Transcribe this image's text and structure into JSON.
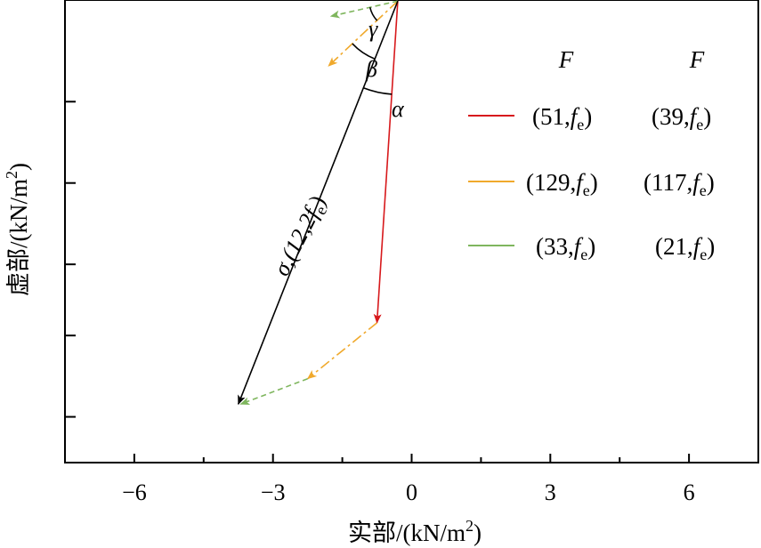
{
  "chart_data": {
    "type": "line",
    "title": "",
    "xlabel": {
      "main": "实部/(kN/m",
      "sup": "2",
      "close": ")"
    },
    "ylabel": {
      "main": "虚部/(kN/m",
      "sup": "2",
      "close": ")"
    },
    "xlim": [
      -7.5,
      7.5
    ],
    "ylim": [
      -8.6,
      0.5
    ],
    "x_ticks": [
      -6,
      -3,
      0,
      3,
      6
    ],
    "x_tick_labels": [
      "−6",
      "−3",
      "0",
      "3",
      "6"
    ],
    "y_ticks": [
      -1.5,
      -3.1,
      -4.7,
      -6.1,
      -7.7
    ],
    "grid": false,
    "legend_position": "right",
    "legend_header": [
      "F",
      "F"
    ],
    "series": [
      {
        "color": "#d7191c",
        "dash": "solid",
        "from": [
          -0.3,
          0.48
        ],
        "to": [
          -0.75,
          -5.85
        ],
        "legend": [
          "(51,",
          "f",
          "e",
          ")",
          "(39,",
          "f",
          "e",
          ")"
        ]
      },
      {
        "color": "#f0a92c",
        "dash": "dashdot",
        "from": [
          -0.75,
          -5.85
        ],
        "to": [
          -2.25,
          -6.95
        ],
        "legend": [
          "(129,",
          "f",
          "e",
          ")",
          "(117,",
          "f",
          "e",
          ")"
        ]
      },
      {
        "color": "#7fb65e",
        "dash": "dashed",
        "from": [
          -2.25,
          -6.95
        ],
        "to": [
          -3.7,
          -7.45
        ],
        "legend": [
          "(33,",
          "f",
          "e",
          ")",
          "(21,",
          "f",
          "e",
          ")"
        ]
      },
      {
        "color": "#000000",
        "dash": "solid",
        "from": [
          -0.3,
          0.48
        ],
        "to": [
          -3.75,
          -7.45
        ],
        "label": [
          "σ,(12,2",
          "f",
          "e",
          ")"
        ]
      }
    ],
    "small_vectors": [
      {
        "color": "#f0a92c",
        "dash": "dashdot",
        "from": [
          -0.3,
          0.48
        ],
        "to": [
          -1.8,
          -0.8
        ]
      },
      {
        "color": "#7fb65e",
        "dash": "dashed",
        "from": [
          -0.3,
          0.48
        ],
        "to": [
          -1.75,
          0.18
        ]
      }
    ],
    "angle_labels": [
      "α",
      "β",
      "γ"
    ]
  }
}
